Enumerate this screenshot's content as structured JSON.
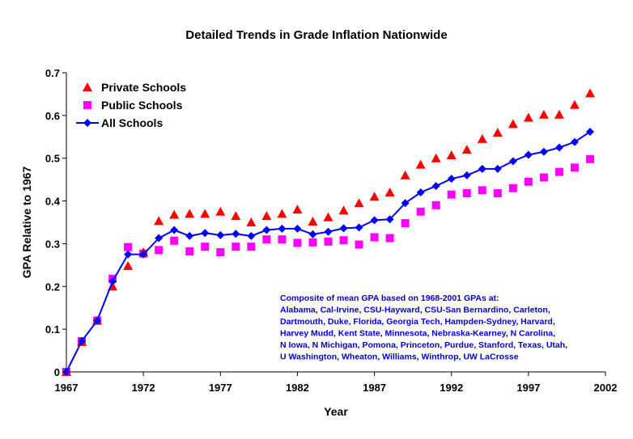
{
  "chart_data": {
    "type": "line",
    "title": "Detailed Trends in Grade Inflation Nationwide",
    "xlabel": "Year",
    "ylabel": "GPA Relative to 1967",
    "xlim": [
      1967,
      2002
    ],
    "ylim": [
      0,
      0.7
    ],
    "x_ticks": [
      1967,
      1972,
      1977,
      1982,
      1987,
      1992,
      1997,
      2002
    ],
    "y_ticks": [
      0,
      0.1,
      0.2,
      0.3,
      0.4,
      0.5,
      0.6,
      0.7
    ],
    "y_tick_labels": [
      "0",
      "0.1",
      "0.2",
      "0.3",
      "0.4",
      "0.5",
      "0.6",
      "0.7"
    ],
    "grid": false,
    "legend_position": "top-left",
    "x": [
      1967,
      1968,
      1969,
      1970,
      1971,
      1972,
      1973,
      1974,
      1975,
      1976,
      1977,
      1978,
      1979,
      1980,
      1981,
      1982,
      1983,
      1984,
      1985,
      1986,
      1987,
      1988,
      1989,
      1990,
      1991,
      1992,
      1993,
      1994,
      1995,
      1996,
      1997,
      1998,
      1999,
      2000,
      2001
    ],
    "series": [
      {
        "name": "Private Schools",
        "color": "#ff0000",
        "marker": "triangle",
        "line": false,
        "values": [
          0,
          0.07,
          0.12,
          0.2,
          0.248,
          0.28,
          0.353,
          0.368,
          0.37,
          0.37,
          0.375,
          0.365,
          0.35,
          0.365,
          0.37,
          0.38,
          0.352,
          0.362,
          0.378,
          0.395,
          0.41,
          0.42,
          0.46,
          0.485,
          0.5,
          0.507,
          0.52,
          0.545,
          0.56,
          0.58,
          0.595,
          0.602,
          0.602,
          0.625,
          0.652
        ]
      },
      {
        "name": "Public Schools",
        "color": "#ff00ff",
        "marker": "square",
        "line": false,
        "values": [
          0,
          0.072,
          0.12,
          0.218,
          0.292,
          0.277,
          0.285,
          0.307,
          0.282,
          0.293,
          0.28,
          0.293,
          0.293,
          0.31,
          0.31,
          0.302,
          0.303,
          0.305,
          0.308,
          0.298,
          0.315,
          0.313,
          0.348,
          0.375,
          0.39,
          0.415,
          0.418,
          0.425,
          0.418,
          0.43,
          0.445,
          0.455,
          0.468,
          0.478,
          0.498
        ]
      },
      {
        "name": "All Schools",
        "color": "#0000ff",
        "marker": "diamond",
        "line": true,
        "values": [
          0,
          0.072,
          0.12,
          0.212,
          0.275,
          0.275,
          0.313,
          0.332,
          0.318,
          0.325,
          0.32,
          0.323,
          0.318,
          0.332,
          0.335,
          0.335,
          0.322,
          0.328,
          0.336,
          0.338,
          0.355,
          0.357,
          0.395,
          0.42,
          0.435,
          0.452,
          0.46,
          0.475,
          0.475,
          0.493,
          0.508,
          0.515,
          0.525,
          0.538,
          0.562
        ]
      }
    ],
    "annotation": [
      "Composite of mean GPA based on 1968-2001 GPAs at:",
      "Alabama, Cal-Irvine, CSU-Hayward, CSU-San Bernardino, Carleton,",
      "Dartmouth, Duke, Florida, Georgia Tech, Hampden-Sydney, Harvard,",
      "Harvey Mudd, Kent State, Minnesota, Nebraska-Kearney, N Carolina,",
      "N Iowa, N Michigan, Pomona, Princeton, Purdue, Stanford, Texas, Utah,",
      "U Washington, Wheaton, Williams, Winthrop, UW LaCrosse"
    ]
  }
}
